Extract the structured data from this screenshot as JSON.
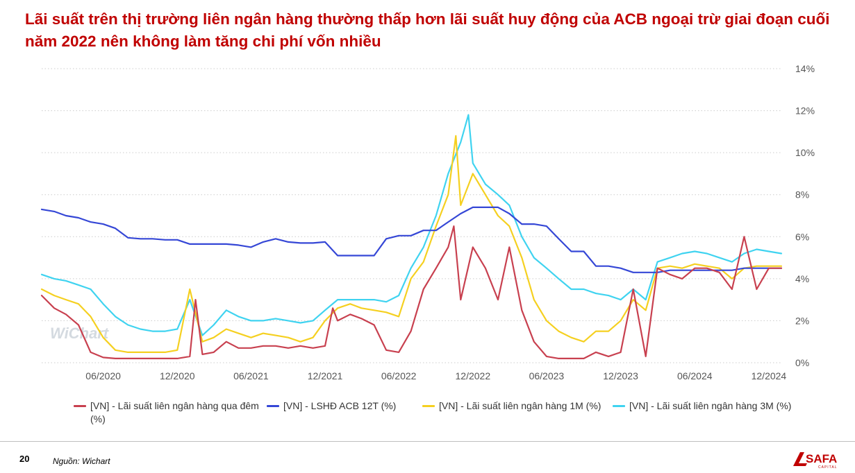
{
  "title": "Lãi suất trên thị trường liên ngân hàng thường thấp hơn lãi suất huy động của ACB ngoại trừ giai đoạn cuối năm 2022 nên không làm tăng chi phí vốn nhiều",
  "footer": {
    "page_number": "20",
    "source": "Nguồn: Wichart"
  },
  "logo": {
    "text": "SAFA",
    "subtext": "CAPITAL",
    "icon": "safa-capital-logo"
  },
  "watermark": "WiChart",
  "colors": {
    "title": "#c00000",
    "overnight": "#c8404f",
    "acb12m": "#3547d6",
    "m1": "#f5d020",
    "m3": "#3fd3f0",
    "grid": "#cccccc",
    "axis_text": "#555555"
  },
  "chart_data": {
    "type": "line",
    "title": "",
    "x_tick_labels": [
      "06/2020",
      "12/2020",
      "06/2021",
      "12/2021",
      "06/2022",
      "12/2022",
      "06/2023",
      "12/2023",
      "06/2024",
      "12/2024"
    ],
    "x_range": [
      "2020-01",
      "2025-01"
    ],
    "y_tick_labels": [
      "0%",
      "2%",
      "4%",
      "6%",
      "8%",
      "10%",
      "12%",
      "14%"
    ],
    "ylim": [
      0,
      14
    ],
    "y_axis_side": "right",
    "grid": "horizontal dotted",
    "legend_position": "bottom",
    "series": [
      {
        "name": "[VN] - Lãi suất liên ngân hàng qua đêm (%)",
        "color": "#c8404f",
        "points": [
          [
            "2020-01",
            3.2
          ],
          [
            "2020-02",
            2.6
          ],
          [
            "2020-03",
            2.3
          ],
          [
            "2020-04",
            1.8
          ],
          [
            "2020-05",
            0.5
          ],
          [
            "2020-06",
            0.25
          ],
          [
            "2020-07",
            0.2
          ],
          [
            "2020-08",
            0.2
          ],
          [
            "2020-09",
            0.2
          ],
          [
            "2020-10",
            0.2
          ],
          [
            "2020-11",
            0.2
          ],
          [
            "2020-12",
            0.2
          ],
          [
            "2021-01",
            0.3
          ],
          [
            "2021-01-15",
            3.0
          ],
          [
            "2021-02",
            0.4
          ],
          [
            "2021-03",
            0.5
          ],
          [
            "2021-04",
            1.0
          ],
          [
            "2021-05",
            0.7
          ],
          [
            "2021-06",
            0.7
          ],
          [
            "2021-07",
            0.8
          ],
          [
            "2021-08",
            0.8
          ],
          [
            "2021-09",
            0.7
          ],
          [
            "2021-10",
            0.8
          ],
          [
            "2021-11",
            0.7
          ],
          [
            "2021-12",
            0.8
          ],
          [
            "2021-12-20",
            2.6
          ],
          [
            "2022-01",
            2.0
          ],
          [
            "2022-02",
            2.3
          ],
          [
            "2022-03",
            2.1
          ],
          [
            "2022-04",
            1.8
          ],
          [
            "2022-05",
            0.6
          ],
          [
            "2022-06",
            0.5
          ],
          [
            "2022-07",
            1.5
          ],
          [
            "2022-08",
            3.5
          ],
          [
            "2022-09",
            4.5
          ],
          [
            "2022-10",
            5.5
          ],
          [
            "2022-10-15",
            6.5
          ],
          [
            "2022-11",
            3.0
          ],
          [
            "2022-12",
            5.5
          ],
          [
            "2023-01",
            4.5
          ],
          [
            "2023-02",
            3.0
          ],
          [
            "2023-03",
            5.5
          ],
          [
            "2023-04",
            2.5
          ],
          [
            "2023-05",
            1.0
          ],
          [
            "2023-06",
            0.3
          ],
          [
            "2023-07",
            0.2
          ],
          [
            "2023-08",
            0.2
          ],
          [
            "2023-09",
            0.2
          ],
          [
            "2023-10",
            0.5
          ],
          [
            "2023-11",
            0.3
          ],
          [
            "2023-12",
            0.5
          ],
          [
            "2024-01",
            3.5
          ],
          [
            "2024-02",
            0.3
          ],
          [
            "2024-03",
            4.5
          ],
          [
            "2024-04",
            4.2
          ],
          [
            "2024-05",
            4.0
          ],
          [
            "2024-06",
            4.5
          ],
          [
            "2024-07",
            4.5
          ],
          [
            "2024-08",
            4.3
          ],
          [
            "2024-09",
            3.5
          ],
          [
            "2024-10",
            6.0
          ],
          [
            "2024-11",
            3.5
          ],
          [
            "2024-12",
            4.5
          ],
          [
            "2025-01",
            4.5
          ]
        ]
      },
      {
        "name": "[VN] - LSHĐ ACB 12T (%)",
        "color": "#3547d6",
        "points": [
          [
            "2020-01",
            7.3
          ],
          [
            "2020-02",
            7.2
          ],
          [
            "2020-03",
            7.0
          ],
          [
            "2020-04",
            6.9
          ],
          [
            "2020-05",
            6.7
          ],
          [
            "2020-06",
            6.6
          ],
          [
            "2020-07",
            6.4
          ],
          [
            "2020-08",
            5.95
          ],
          [
            "2020-09",
            5.9
          ],
          [
            "2020-10",
            5.9
          ],
          [
            "2020-11",
            5.85
          ],
          [
            "2020-12",
            5.85
          ],
          [
            "2021-01",
            5.65
          ],
          [
            "2021-02",
            5.65
          ],
          [
            "2021-03",
            5.65
          ],
          [
            "2021-04",
            5.65
          ],
          [
            "2021-05",
            5.6
          ],
          [
            "2021-06",
            5.5
          ],
          [
            "2021-07",
            5.75
          ],
          [
            "2021-08",
            5.9
          ],
          [
            "2021-09",
            5.75
          ],
          [
            "2021-10",
            5.7
          ],
          [
            "2021-11",
            5.7
          ],
          [
            "2021-12",
            5.75
          ],
          [
            "2022-01",
            5.1
          ],
          [
            "2022-02",
            5.1
          ],
          [
            "2022-03",
            5.1
          ],
          [
            "2022-04",
            5.1
          ],
          [
            "2022-05",
            5.9
          ],
          [
            "2022-06",
            6.05
          ],
          [
            "2022-07",
            6.05
          ],
          [
            "2022-08",
            6.3
          ],
          [
            "2022-09",
            6.3
          ],
          [
            "2022-10",
            6.7
          ],
          [
            "2022-11",
            7.1
          ],
          [
            "2022-12",
            7.4
          ],
          [
            "2023-01",
            7.4
          ],
          [
            "2023-02",
            7.4
          ],
          [
            "2023-03",
            7.1
          ],
          [
            "2023-04",
            6.6
          ],
          [
            "2023-05",
            6.6
          ],
          [
            "2023-06",
            6.5
          ],
          [
            "2023-07",
            5.9
          ],
          [
            "2023-08",
            5.3
          ],
          [
            "2023-09",
            5.3
          ],
          [
            "2023-10",
            4.6
          ],
          [
            "2023-11",
            4.6
          ],
          [
            "2023-12",
            4.5
          ],
          [
            "2024-01",
            4.3
          ],
          [
            "2024-02",
            4.3
          ],
          [
            "2024-03",
            4.3
          ],
          [
            "2024-04",
            4.4
          ],
          [
            "2024-05",
            4.4
          ],
          [
            "2024-06",
            4.4
          ],
          [
            "2024-07",
            4.4
          ],
          [
            "2024-08",
            4.4
          ],
          [
            "2024-09",
            4.4
          ],
          [
            "2024-10",
            4.5
          ],
          [
            "2024-11",
            4.5
          ],
          [
            "2024-12",
            4.5
          ],
          [
            "2025-01",
            4.5
          ]
        ]
      },
      {
        "name": "[VN] - Lãi suất liên ngân hàng 1M (%)",
        "color": "#f5d020",
        "points": [
          [
            "2020-01",
            3.5
          ],
          [
            "2020-02",
            3.2
          ],
          [
            "2020-03",
            3.0
          ],
          [
            "2020-04",
            2.8
          ],
          [
            "2020-05",
            2.2
          ],
          [
            "2020-06",
            1.2
          ],
          [
            "2020-07",
            0.6
          ],
          [
            "2020-08",
            0.5
          ],
          [
            "2020-09",
            0.5
          ],
          [
            "2020-10",
            0.5
          ],
          [
            "2020-11",
            0.5
          ],
          [
            "2020-12",
            0.6
          ],
          [
            "2021-01",
            3.5
          ],
          [
            "2021-02",
            1.0
          ],
          [
            "2021-03",
            1.2
          ],
          [
            "2021-04",
            1.6
          ],
          [
            "2021-05",
            1.4
          ],
          [
            "2021-06",
            1.2
          ],
          [
            "2021-07",
            1.4
          ],
          [
            "2021-08",
            1.3
          ],
          [
            "2021-09",
            1.2
          ],
          [
            "2021-10",
            1.0
          ],
          [
            "2021-11",
            1.2
          ],
          [
            "2021-12",
            2.0
          ],
          [
            "2022-01",
            2.6
          ],
          [
            "2022-02",
            2.8
          ],
          [
            "2022-03",
            2.6
          ],
          [
            "2022-04",
            2.5
          ],
          [
            "2022-05",
            2.4
          ],
          [
            "2022-06",
            2.2
          ],
          [
            "2022-07",
            4.0
          ],
          [
            "2022-08",
            4.8
          ],
          [
            "2022-09",
            6.5
          ],
          [
            "2022-10",
            8.0
          ],
          [
            "2022-10-20",
            10.8
          ],
          [
            "2022-11",
            7.5
          ],
          [
            "2022-12",
            9.0
          ],
          [
            "2023-01",
            8.0
          ],
          [
            "2023-02",
            7.0
          ],
          [
            "2023-03",
            6.5
          ],
          [
            "2023-04",
            5.0
          ],
          [
            "2023-05",
            3.0
          ],
          [
            "2023-06",
            2.0
          ],
          [
            "2023-07",
            1.5
          ],
          [
            "2023-08",
            1.2
          ],
          [
            "2023-09",
            1.0
          ],
          [
            "2023-10",
            1.5
          ],
          [
            "2023-11",
            1.5
          ],
          [
            "2023-12",
            2.0
          ],
          [
            "2024-01",
            3.0
          ],
          [
            "2024-02",
            2.5
          ],
          [
            "2024-03",
            4.5
          ],
          [
            "2024-04",
            4.6
          ],
          [
            "2024-05",
            4.5
          ],
          [
            "2024-06",
            4.7
          ],
          [
            "2024-07",
            4.6
          ],
          [
            "2024-08",
            4.5
          ],
          [
            "2024-09",
            4.0
          ],
          [
            "2024-10",
            4.5
          ],
          [
            "2024-11",
            4.6
          ],
          [
            "2024-12",
            4.6
          ],
          [
            "2025-01",
            4.6
          ]
        ]
      },
      {
        "name": "[VN] - Lãi suất liên ngân hàng 3M (%)",
        "color": "#3fd3f0",
        "points": [
          [
            "2020-01",
            4.2
          ],
          [
            "2020-02",
            4.0
          ],
          [
            "2020-03",
            3.9
          ],
          [
            "2020-04",
            3.7
          ],
          [
            "2020-05",
            3.5
          ],
          [
            "2020-06",
            2.8
          ],
          [
            "2020-07",
            2.2
          ],
          [
            "2020-08",
            1.8
          ],
          [
            "2020-09",
            1.6
          ],
          [
            "2020-10",
            1.5
          ],
          [
            "2020-11",
            1.5
          ],
          [
            "2020-12",
            1.6
          ],
          [
            "2021-01",
            3.0
          ],
          [
            "2021-02",
            1.3
          ],
          [
            "2021-03",
            1.8
          ],
          [
            "2021-04",
            2.5
          ],
          [
            "2021-05",
            2.2
          ],
          [
            "2021-06",
            2.0
          ],
          [
            "2021-07",
            2.0
          ],
          [
            "2021-08",
            2.1
          ],
          [
            "2021-09",
            2.0
          ],
          [
            "2021-10",
            1.9
          ],
          [
            "2021-11",
            2.0
          ],
          [
            "2021-12",
            2.5
          ],
          [
            "2022-01",
            3.0
          ],
          [
            "2022-02",
            3.0
          ],
          [
            "2022-03",
            3.0
          ],
          [
            "2022-04",
            3.0
          ],
          [
            "2022-05",
            2.9
          ],
          [
            "2022-06",
            3.2
          ],
          [
            "2022-07",
            4.5
          ],
          [
            "2022-08",
            5.5
          ],
          [
            "2022-09",
            7.0
          ],
          [
            "2022-10",
            9.0
          ],
          [
            "2022-11",
            10.5
          ],
          [
            "2022-11-20",
            11.8
          ],
          [
            "2022-12",
            9.5
          ],
          [
            "2023-01",
            8.5
          ],
          [
            "2023-02",
            8.0
          ],
          [
            "2023-03",
            7.5
          ],
          [
            "2023-04",
            6.0
          ],
          [
            "2023-05",
            5.0
          ],
          [
            "2023-06",
            4.5
          ],
          [
            "2023-07",
            4.0
          ],
          [
            "2023-08",
            3.5
          ],
          [
            "2023-09",
            3.5
          ],
          [
            "2023-10",
            3.3
          ],
          [
            "2023-11",
            3.2
          ],
          [
            "2023-12",
            3.0
          ],
          [
            "2024-01",
            3.5
          ],
          [
            "2024-02",
            3.0
          ],
          [
            "2024-03",
            4.8
          ],
          [
            "2024-04",
            5.0
          ],
          [
            "2024-05",
            5.2
          ],
          [
            "2024-06",
            5.3
          ],
          [
            "2024-07",
            5.2
          ],
          [
            "2024-08",
            5.0
          ],
          [
            "2024-09",
            4.8
          ],
          [
            "2024-10",
            5.2
          ],
          [
            "2024-11",
            5.4
          ],
          [
            "2024-12",
            5.3
          ],
          [
            "2025-01",
            5.2
          ]
        ]
      }
    ]
  }
}
